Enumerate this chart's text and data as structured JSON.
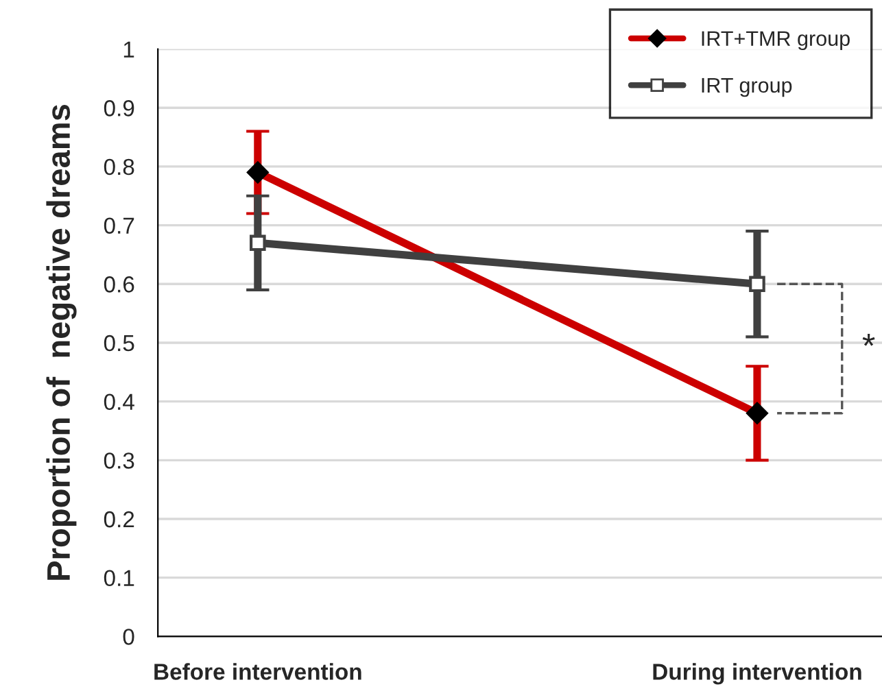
{
  "chart_data": {
    "type": "line",
    "categories": [
      "Before intervention",
      "During intervention"
    ],
    "series": [
      {
        "name": "IRT+TMR group",
        "color": "#cc0000",
        "values": [
          0.79,
          0.38
        ],
        "errors": [
          0.07,
          0.08
        ],
        "marker": "diamond"
      },
      {
        "name": "IRT group",
        "color": "#404040",
        "values": [
          0.67,
          0.6
        ],
        "errors": [
          0.08,
          0.09
        ],
        "marker": "square"
      }
    ],
    "ylabel": "Proportion of  negative dreams",
    "ylim": [
      0,
      1
    ],
    "yticks": [
      0,
      0.1,
      0.2,
      0.3,
      0.4,
      0.5,
      0.6,
      0.7,
      0.8,
      0.9,
      1
    ],
    "grid": "y",
    "legend": "top right",
    "annotations": [
      "*"
    ]
  }
}
